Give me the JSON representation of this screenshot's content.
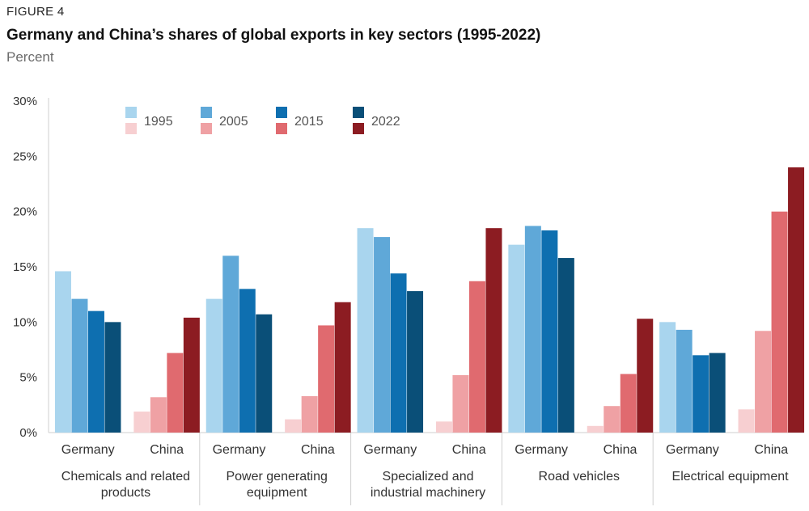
{
  "figure_label": "FIGURE 4",
  "title": "Germany and China’s shares of global exports in key sectors (1995-2022)",
  "subtitle": "Percent",
  "chart_data": {
    "type": "bar",
    "ylim": [
      0,
      30
    ],
    "yticks": [
      0,
      5,
      10,
      15,
      20,
      25,
      30
    ],
    "ytick_labels": [
      "0%",
      "5%",
      "10%",
      "15%",
      "20%",
      "25%",
      "30%"
    ],
    "years": [
      "1995",
      "2005",
      "2015",
      "2022"
    ],
    "colors": {
      "Germany": [
        "#a9d5ee",
        "#5fa8d8",
        "#0e6fb0",
        "#0a4f78"
      ],
      "China": [
        "#f7cfd1",
        "#efa1a4",
        "#e06a6f",
        "#8c1c22"
      ]
    },
    "sectors": [
      {
        "name": "Chemicals and related products",
        "name_lines": [
          "Chemicals and related",
          "products"
        ],
        "groups": [
          {
            "country": "Germany",
            "values": [
              14.6,
              12.1,
              11.0,
              10.0
            ]
          },
          {
            "country": "China",
            "values": [
              1.9,
              3.2,
              7.2,
              10.4
            ]
          }
        ]
      },
      {
        "name": "Power generating equipment",
        "name_lines": [
          "Power generating",
          "equipment"
        ],
        "groups": [
          {
            "country": "Germany",
            "values": [
              12.1,
              16.0,
              13.0,
              10.7
            ]
          },
          {
            "country": "China",
            "values": [
              1.2,
              3.3,
              9.7,
              11.8
            ]
          }
        ]
      },
      {
        "name": "Specialized and industrial machinery",
        "name_lines": [
          "Specialized and",
          "industrial machinery"
        ],
        "groups": [
          {
            "country": "Germany",
            "values": [
              18.5,
              17.7,
              14.4,
              12.8
            ]
          },
          {
            "country": "China",
            "values": [
              1.0,
              5.2,
              13.7,
              18.5
            ]
          }
        ]
      },
      {
        "name": "Road vehicles",
        "name_lines": [
          "Road vehicles"
        ],
        "groups": [
          {
            "country": "Germany",
            "values": [
              17.0,
              18.7,
              18.3,
              15.8
            ]
          },
          {
            "country": "China",
            "values": [
              0.6,
              2.4,
              5.3,
              10.3
            ]
          }
        ]
      },
      {
        "name": "Electrical equipment",
        "name_lines": [
          "Electrical equipment"
        ],
        "groups": [
          {
            "country": "Germany",
            "values": [
              10.0,
              9.3,
              7.0,
              7.2
            ]
          },
          {
            "country": "China",
            "values": [
              2.1,
              9.2,
              20.0,
              24.0
            ]
          }
        ]
      }
    ],
    "legend": {
      "placement": "top-left",
      "labels": [
        "1995",
        "2005",
        "2015",
        "2022"
      ]
    }
  }
}
